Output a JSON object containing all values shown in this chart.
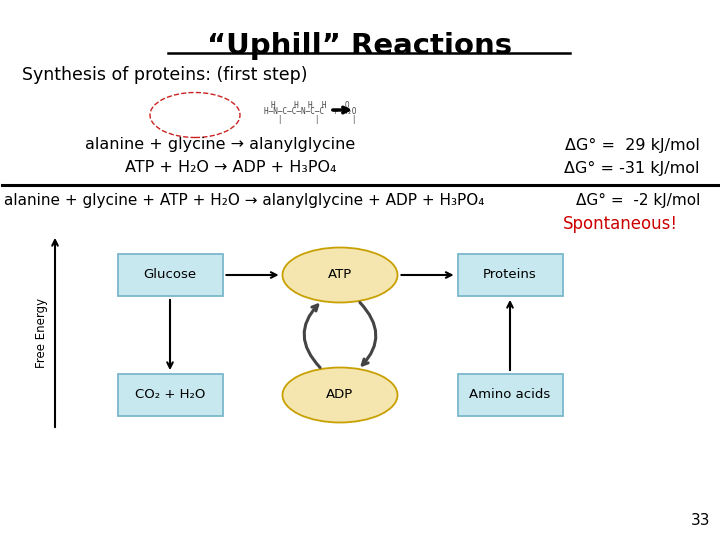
{
  "title": "“Uphill” Reactions",
  "subtitle": "Synthesis of proteins: (first step)",
  "line1_left": "alanine + glycine → alanylglycine",
  "line1_right": "ΔG° =  29 kJ/mol",
  "line2_left": "ATP + H₂O → ADP + H₃PO₄",
  "line2_right": "ΔG° = -31 kJ/mol",
  "line3_left": "alanine + glycine + ATP + H₂O → alanylglycine + ADP + H₃PO₄",
  "line3_right": "ΔG° =  -2 kJ/mol",
  "spontaneous": "Spontaneous!",
  "page_number": "33",
  "box_glucose": "Glucose",
  "box_atp": "ATP",
  "box_proteins": "Proteins",
  "box_co2": "CO₂ + H₂O",
  "box_adp": "ADP",
  "box_amino": "Amino acids",
  "axis_label": "Free Energy",
  "bg_color": "#ffffff",
  "title_color": "#000000",
  "spontaneous_color": "#cc0000",
  "box_rect_edge": "#7ab8cc",
  "box_rect_face": "#c8e8f0",
  "box_oval_edge": "#c8a000",
  "box_oval_face": "#f5e6b0",
  "text_color": "#000000",
  "arrow_color": "#555555"
}
